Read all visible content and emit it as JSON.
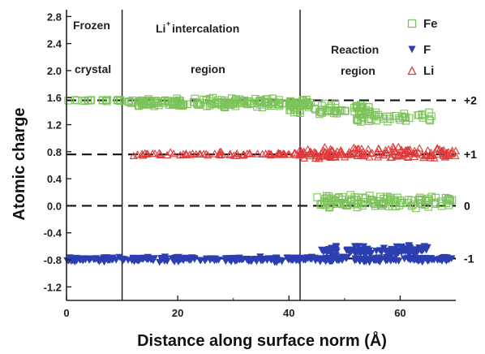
{
  "chart_data": {
    "type": "scatter",
    "xlabel": "Distance along surface norm (Å)",
    "ylabel": "Atomic charge",
    "xlim": [
      0,
      70
    ],
    "ylim": [
      -1.4,
      2.9
    ],
    "x_ticks": [
      "0",
      "20",
      "40",
      "60"
    ],
    "y_ticks": [
      "2.8",
      "2.4",
      "2.0",
      "1.6",
      "1.2",
      "0.8",
      "0.4",
      "0.0",
      "-0.4",
      "-0.8",
      "-1.2"
    ],
    "grid": false,
    "legend_position": "top-right",
    "region_boundaries": [
      10,
      42
    ],
    "regions": [
      {
        "lines": [
          "Frozen",
          "crystal"
        ]
      },
      {
        "lines": [
          "Li",
          "+",
          " intercalation",
          "region"
        ]
      },
      {
        "lines": [
          "Reaction",
          "region"
        ]
      }
    ],
    "reference_lines": [
      {
        "y": 1.56,
        "label": "+2"
      },
      {
        "y": 0.76,
        "label": "+1"
      },
      {
        "y": 0.0,
        "label": "0"
      },
      {
        "y": -0.78,
        "label": "-1"
      }
    ],
    "series": [
      {
        "name": "Fe",
        "marker": "square-open",
        "color": "#7cc35a",
        "segments": [
          {
            "x": [
              0,
              10
            ],
            "y_mean": 1.56,
            "y_spread": 0.02,
            "n": 18
          },
          {
            "x": [
              11,
              44
            ],
            "y_mean": 1.52,
            "y_spread": 0.09,
            "n": 190
          },
          {
            "x": [
              40,
              55
            ],
            "y_mean": 1.42,
            "y_spread": 0.14,
            "n": 70
          },
          {
            "x": [
              52,
              66
            ],
            "y_mean": 1.3,
            "y_spread": 0.12,
            "n": 40
          },
          {
            "x": [
              45,
              70
            ],
            "y_mean": 0.06,
            "y_spread": 0.14,
            "n": 120
          }
        ]
      },
      {
        "name": "F",
        "marker": "triangle-down-filled",
        "color": "#2b3fb0",
        "segments": [
          {
            "x": [
              0,
              70
            ],
            "y_mean": -0.79,
            "y_spread": 0.05,
            "n": 320
          },
          {
            "x": [
              45,
              65
            ],
            "y_mean": -0.66,
            "y_spread": 0.1,
            "n": 90
          }
        ]
      },
      {
        "name": "Li",
        "marker": "triangle-up-open",
        "color": "#e03a3a",
        "segments": [
          {
            "x": [
              12,
              42
            ],
            "y_mean": 0.76,
            "y_spread": 0.04,
            "n": 70
          },
          {
            "x": [
              42,
              70
            ],
            "y_mean": 0.78,
            "y_spread": 0.12,
            "n": 160
          }
        ]
      }
    ]
  }
}
